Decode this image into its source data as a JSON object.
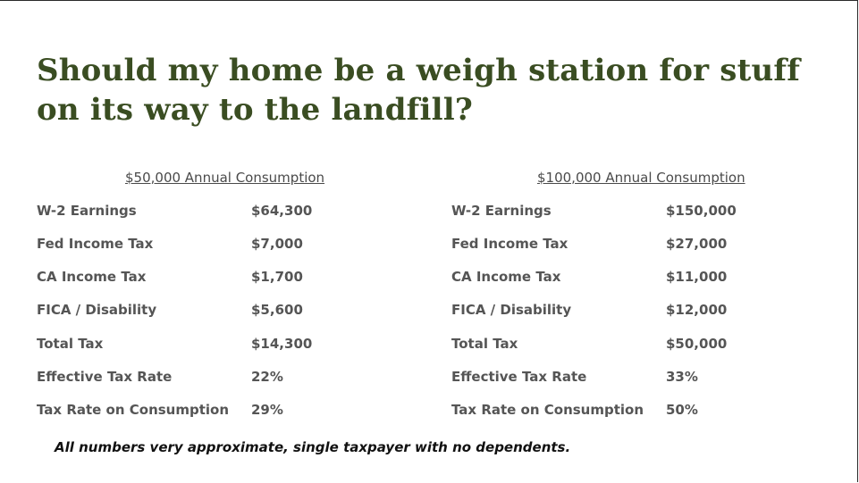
{
  "title": "Should my home be a weigh station for stuff on its way to the landfill?",
  "tables": [
    {
      "heading": "$50,000 Annual Consumption",
      "rows": [
        {
          "label": "W-2 Earnings",
          "value": "$64,300"
        },
        {
          "label": "Fed Income Tax",
          "value": "$7,000"
        },
        {
          "label": "CA Income Tax",
          "value": "$1,700"
        },
        {
          "label": "FICA / Disability",
          "value": "$5,600"
        },
        {
          "label": "Total Tax",
          "value": "$14,300"
        },
        {
          "label": "Effective Tax Rate",
          "value": "22%"
        },
        {
          "label": "Tax Rate on Consumption",
          "value": "29%"
        }
      ]
    },
    {
      "heading": "$100,000 Annual Consumption",
      "rows": [
        {
          "label": "W-2 Earnings",
          "value": "$150,000"
        },
        {
          "label": "Fed Income Tax",
          "value": "$27,000"
        },
        {
          "label": "CA Income Tax",
          "value": "$11,000"
        },
        {
          "label": "FICA / Disability",
          "value": "$12,000"
        },
        {
          "label": "Total Tax",
          "value": "$50,000"
        },
        {
          "label": "Effective Tax Rate",
          "value": "33%"
        },
        {
          "label": "Tax Rate on Consumption",
          "value": "50%"
        }
      ]
    }
  ],
  "footnote": "All numbers very approximate, single taxpayer with no dependents."
}
